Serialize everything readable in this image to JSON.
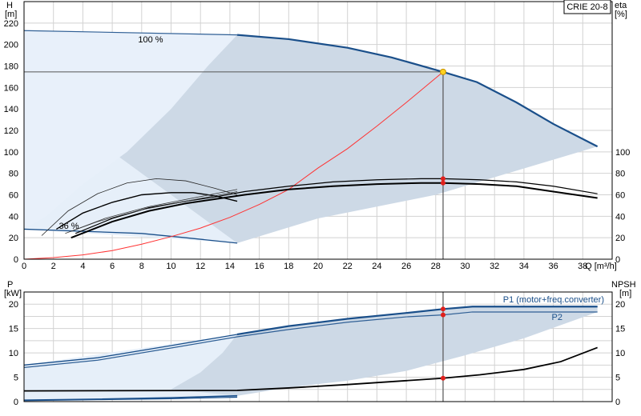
{
  "chart_data": [
    {
      "type": "line",
      "title": "CRIE 20-8",
      "ylabel_left": [
        "H",
        "[m]"
      ],
      "ylabel_right": [
        "eta",
        "[%]"
      ],
      "xlabel": "Q [m³/h]",
      "xlim": [
        0,
        40
      ],
      "ylim": [
        0,
        240
      ],
      "xticks": [
        0,
        2,
        4,
        6,
        8,
        10,
        12,
        14,
        16,
        18,
        20,
        22,
        24,
        26,
        28,
        30,
        32,
        34,
        36,
        38
      ],
      "yticks_left": [
        0,
        20,
        40,
        60,
        80,
        100,
        120,
        140,
        160,
        180,
        200,
        220
      ],
      "yticks_right": [
        0,
        20,
        40,
        60,
        80,
        100
      ],
      "grid": true,
      "annotations": [
        "100 %",
        "36 %"
      ],
      "duty_point": {
        "q": 28.5,
        "h": 174.5
      },
      "series": [
        {
          "role": "head-max-upper",
          "x": [
            0,
            14.5,
            18,
            22,
            25,
            28.5,
            30.8,
            33.5,
            36,
            39
          ],
          "y": [
            213,
            209,
            205,
            197,
            188,
            174.5,
            165,
            146,
            126,
            105
          ]
        },
        {
          "role": "head-min",
          "x": [
            0,
            4,
            8,
            11,
            14.5
          ],
          "y": [
            28,
            26,
            24,
            20,
            15
          ]
        },
        {
          "role": "system-curve",
          "x": [
            0,
            2,
            4,
            6,
            8,
            10,
            12,
            14,
            16,
            18,
            20,
            22,
            24,
            26,
            28.5
          ],
          "y": [
            0,
            1.5,
            4,
            8,
            14,
            21,
            29,
            39,
            51,
            65,
            85,
            103,
            124,
            146,
            174.5
          ]
        },
        {
          "role": "eta-thin",
          "x": [
            3.5,
            6,
            8.5,
            11,
            13,
            15,
            18,
            21,
            24,
            27,
            28.5,
            31,
            33.5,
            36,
            39
          ],
          "y": [
            24,
            38,
            48,
            54,
            58,
            63,
            68,
            72,
            74,
            75,
            75,
            74,
            72,
            68,
            61
          ]
        },
        {
          "role": "eta-thick",
          "x": [
            3.2,
            6,
            8.5,
            11,
            13,
            15,
            18,
            21,
            24,
            27,
            28.5,
            31,
            33.5,
            36,
            39
          ],
          "y": [
            20,
            35,
            45,
            52,
            56,
            60,
            65,
            68,
            70,
            71,
            71,
            70,
            68,
            63,
            57
          ]
        },
        {
          "role": "eta-reduced-thin",
          "x": [
            1.2,
            3,
            5,
            7,
            9,
            11,
            13,
            14.5
          ],
          "y": [
            22,
            45,
            61,
            71,
            75,
            73,
            66,
            60
          ]
        },
        {
          "role": "eta-reduced-thick",
          "x": [
            2.2,
            4,
            6,
            8,
            10,
            11.5,
            13,
            14.5
          ],
          "y": [
            28,
            43,
            53,
            60,
            62,
            62,
            59,
            54
          ]
        }
      ]
    },
    {
      "type": "line",
      "ylabel_left": [
        "P",
        "[kW]"
      ],
      "ylabel_right": [
        "NPSH",
        "[m]"
      ],
      "xlim": [
        0,
        40
      ],
      "ylim": [
        0,
        22.5
      ],
      "yticks_left": [
        0,
        5,
        10,
        15,
        20
      ],
      "yticks_right": [
        0,
        5,
        10,
        15,
        20
      ],
      "grid": true,
      "legend": [
        "P1 (motor+freq.converter)",
        "P2"
      ],
      "duty_point": {
        "q": 28.5,
        "p1": 19,
        "p2": 17.8,
        "npsh": 4.8
      },
      "series": [
        {
          "name": "P1 (motor+freq.converter)",
          "x": [
            0,
            5,
            10,
            14.5,
            18,
            22,
            26,
            28.5,
            30.5,
            39
          ],
          "y": [
            7.5,
            9,
            11.5,
            13.8,
            15.5,
            17,
            18.2,
            19,
            19.5,
            19.5
          ]
        },
        {
          "name": "P2",
          "x": [
            0,
            5,
            10,
            14.5,
            18,
            22,
            26,
            28.5,
            30.5,
            39
          ],
          "y": [
            7,
            8.5,
            11,
            13.3,
            14.8,
            16.3,
            17.4,
            17.8,
            18.4,
            18.4
          ]
        },
        {
          "role": "npsh",
          "x": [
            0,
            14.5,
            18,
            22,
            26,
            28.5,
            31,
            34,
            36.5,
            39
          ],
          "y": [
            2.2,
            2.3,
            2.8,
            3.5,
            4.3,
            4.8,
            5.5,
            6.6,
            8.2,
            11.1
          ]
        },
        {
          "role": "p-min-a",
          "x": [
            0,
            5,
            10,
            14.5
          ],
          "y": [
            0.3,
            0.5,
            0.8,
            1.2
          ]
        },
        {
          "role": "p-min-b",
          "x": [
            0,
            5,
            10,
            14.5
          ],
          "y": [
            0.2,
            0.4,
            0.6,
            0.9
          ]
        }
      ]
    }
  ]
}
